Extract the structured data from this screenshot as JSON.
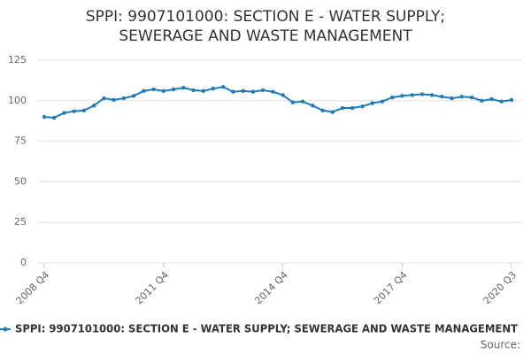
{
  "chart_data": {
    "type": "line",
    "title": "SPPI: 9907101000: SECTION E - WATER SUPPLY; SEWERAGE AND WASTE MANAGEMENT",
    "categories": [
      "2008 Q4",
      null,
      null,
      null,
      null,
      null,
      null,
      null,
      null,
      null,
      null,
      null,
      "2011 Q4",
      null,
      null,
      null,
      null,
      null,
      null,
      null,
      null,
      null,
      null,
      null,
      "2014 Q4",
      null,
      null,
      null,
      null,
      null,
      null,
      null,
      null,
      null,
      null,
      null,
      "2017 Q4",
      null,
      null,
      null,
      null,
      null,
      null,
      null,
      null,
      null,
      null,
      "2020 Q3"
    ],
    "series": [
      {
        "name": "SPPI: 9907101000: SECTION E - WATER SUPPLY; SEWERAGE AND WASTE MANAGEMENT",
        "color": "#1f7bb6",
        "values": [
          90,
          89.5,
          92.5,
          93.5,
          94,
          97,
          101.5,
          100.5,
          101.5,
          103,
          106,
          107,
          106,
          107,
          108,
          106.5,
          106,
          107.5,
          108.5,
          105.5,
          106,
          105.5,
          106.5,
          105.5,
          103.5,
          99,
          99.5,
          97,
          94,
          93,
          95.5,
          95.5,
          96.5,
          98.5,
          99.5,
          102,
          103,
          103.5,
          104,
          103.5,
          102.5,
          101.5,
          102.5,
          102,
          100,
          101,
          99.5,
          100.5
        ]
      }
    ],
    "ylim": [
      0,
      125
    ],
    "yticks": [
      0,
      25,
      50,
      75,
      100,
      125
    ],
    "grid": true,
    "source_label": "Source:"
  }
}
